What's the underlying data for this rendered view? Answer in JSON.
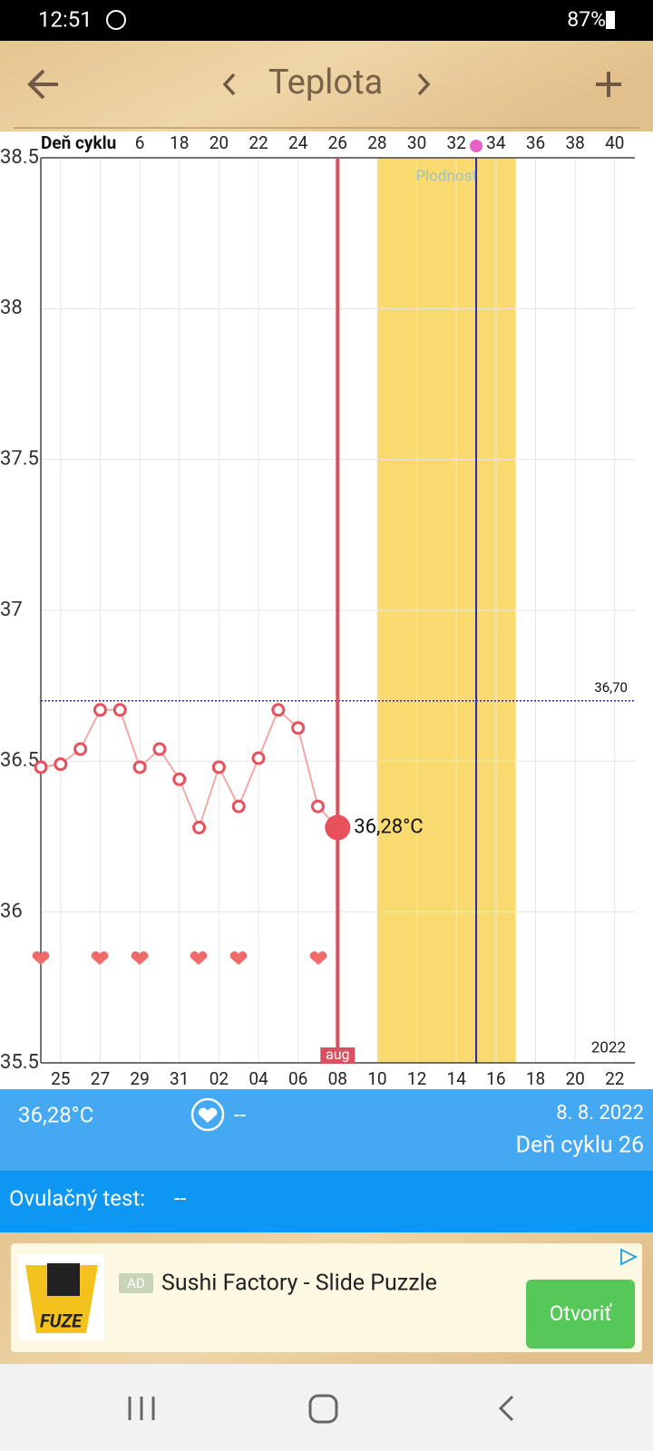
{
  "status_bar": {
    "time": "12:51",
    "battery": "87%"
  },
  "toolbar": {
    "title": "Teplota"
  },
  "chart_data": {
    "type": "line",
    "x2_label": "Deň cyklu",
    "categories": [
      null,
      "25",
      null,
      "27",
      null,
      "29",
      null,
      "31",
      null,
      "02",
      null,
      "04",
      null,
      "06",
      null,
      "08",
      null,
      "10",
      null,
      "12",
      null,
      "14",
      null,
      "16",
      null,
      "18",
      null,
      "20",
      null,
      "22"
    ],
    "x2_categories": [
      null,
      null,
      null,
      null,
      null,
      "6",
      null,
      "18",
      null,
      "20",
      null,
      "22",
      null,
      "24",
      null,
      "26",
      null,
      "28",
      null,
      "30",
      null,
      "32",
      null,
      "34",
      null,
      "36",
      null,
      "38",
      null,
      "40"
    ],
    "values": [
      36.48,
      36.49,
      36.54,
      36.67,
      36.67,
      36.48,
      36.54,
      36.44,
      36.28,
      36.48,
      36.35,
      36.51,
      36.67,
      36.61,
      36.35,
      36.28,
      null,
      null,
      null,
      null,
      null,
      null,
      null,
      null,
      null,
      null,
      null,
      null,
      null,
      null
    ],
    "value_labels": [
      null,
      null,
      null,
      null,
      null,
      null,
      null,
      null,
      null,
      null,
      null,
      null,
      null,
      null,
      null,
      "36,28°C",
      null,
      null,
      null,
      null,
      null,
      null,
      null,
      null,
      null,
      null,
      null,
      null,
      null,
      null
    ],
    "color": "#e8505b",
    "ylim": [
      35.5,
      38.5
    ],
    "yticks": [
      35.5,
      36,
      36.5,
      37,
      37.5,
      38,
      38.5
    ],
    "grid": true,
    "cover_line": {
      "value": 36.7,
      "label": "36,70",
      "color": "#2d2d9a"
    },
    "fertile_window": {
      "label": "Plodnosť",
      "start": 17,
      "end": 24,
      "color": "#f9da6f"
    },
    "ovulation_day": 22,
    "ovulation_color": "#2a2aa8",
    "today": {
      "index": 15,
      "label": "aug"
    },
    "year": "2022"
  },
  "info": {
    "temperature": "36,28°C",
    "heart": "--",
    "date": "8. 8. 2022",
    "cycle_day": "Deň cyklu 26",
    "ovulation_test_label": "Ovulačný test:",
    "ovulation_test_value": "--"
  },
  "ad": {
    "badge": "AD",
    "logo": "FUZE",
    "title": "Sushi Factory - Slide Puzzle",
    "button": "Otvoriť"
  }
}
